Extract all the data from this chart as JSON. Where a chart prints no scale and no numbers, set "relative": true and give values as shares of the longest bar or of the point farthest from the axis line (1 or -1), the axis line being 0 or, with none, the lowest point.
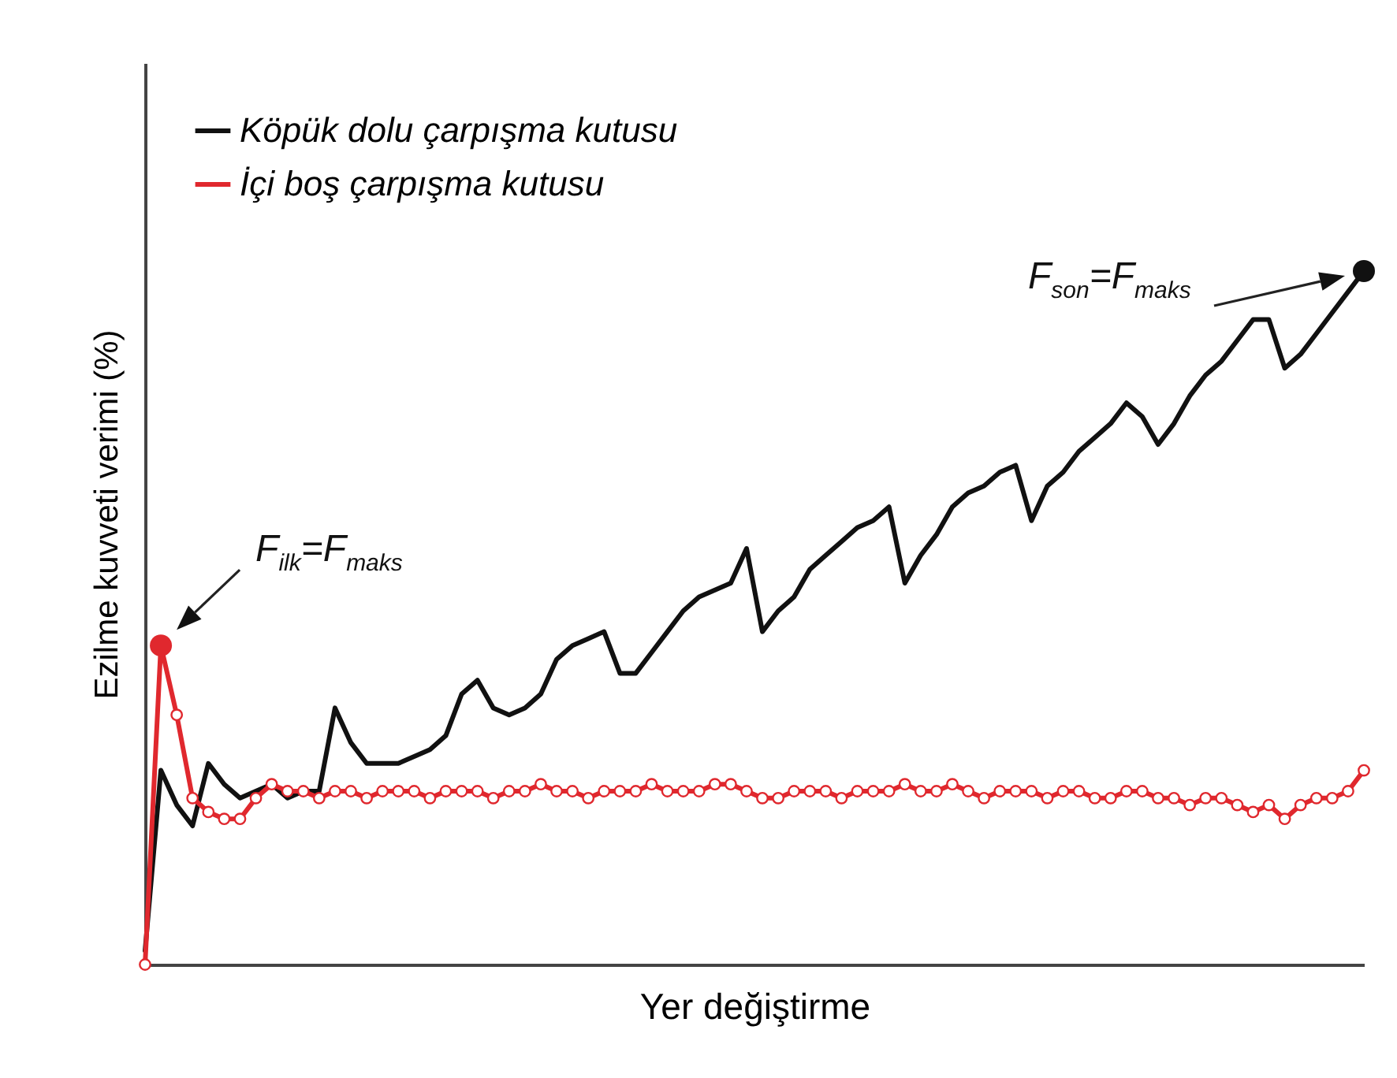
{
  "chart_data": {
    "type": "line",
    "relative": true,
    "xlabel": "Yer değiştirme",
    "ylabel": "Ezilme kuvveti verimi (%)",
    "legend": "top left",
    "categories": [
      null,
      null,
      null,
      null,
      null,
      null,
      null,
      null,
      null,
      null,
      null,
      null,
      null,
      null,
      null,
      null,
      null,
      null,
      null,
      null,
      null,
      null,
      null,
      null,
      null,
      null,
      null,
      null,
      null,
      null,
      null,
      null,
      null,
      null,
      null,
      null,
      null,
      null,
      null,
      null,
      null,
      null,
      null,
      null,
      null,
      null,
      null,
      null,
      null,
      null,
      null,
      null,
      null,
      null,
      null,
      null,
      null,
      null,
      null,
      null,
      null,
      null,
      null,
      null,
      null,
      null,
      null,
      null,
      null,
      null,
      null,
      null,
      null,
      null,
      null,
      null,
      null,
      null
    ],
    "series": [
      {
        "name": "Köpük dolu çarpışma kutusu",
        "color": "#111111",
        "values": [
          0.02,
          0.28,
          0.23,
          0.2,
          0.29,
          0.26,
          0.24,
          0.25,
          0.26,
          0.24,
          0.25,
          0.25,
          0.37,
          0.32,
          0.29,
          0.29,
          0.29,
          0.3,
          0.31,
          0.33,
          0.39,
          0.41,
          0.37,
          0.36,
          0.37,
          0.39,
          0.44,
          0.46,
          0.47,
          0.48,
          0.42,
          0.42,
          0.45,
          0.48,
          0.51,
          0.53,
          0.54,
          0.55,
          0.6,
          0.48,
          0.51,
          0.53,
          0.57,
          0.59,
          0.61,
          0.63,
          0.64,
          0.66,
          0.55,
          0.59,
          0.62,
          0.66,
          0.68,
          0.69,
          0.71,
          0.72,
          0.64,
          0.69,
          0.71,
          0.74,
          0.76,
          0.78,
          0.81,
          0.79,
          0.75,
          0.78,
          0.82,
          0.85,
          0.87,
          0.9,
          0.93,
          0.93,
          0.86,
          0.88,
          0.91,
          0.94,
          0.97,
          1
        ]
      },
      {
        "name": "İçi boş çarpışma kutusu",
        "color": "#e0282e",
        "marker": "circle",
        "values": [
          0,
          0.46,
          0.36,
          0.24,
          0.22,
          0.21,
          0.21,
          0.24,
          0.26,
          0.25,
          0.25,
          0.24,
          0.25,
          0.25,
          0.24,
          0.25,
          0.25,
          0.25,
          0.24,
          0.25,
          0.25,
          0.25,
          0.24,
          0.25,
          0.25,
          0.26,
          0.25,
          0.25,
          0.24,
          0.25,
          0.25,
          0.25,
          0.26,
          0.25,
          0.25,
          0.25,
          0.26,
          0.26,
          0.25,
          0.24,
          0.24,
          0.25,
          0.25,
          0.25,
          0.24,
          0.25,
          0.25,
          0.25,
          0.26,
          0.25,
          0.25,
          0.26,
          0.25,
          0.24,
          0.25,
          0.25,
          0.25,
          0.24,
          0.25,
          0.25,
          0.24,
          0.24,
          0.25,
          0.25,
          0.24,
          0.24,
          0.23,
          0.24,
          0.24,
          0.23,
          0.22,
          0.23,
          0.21,
          0.23,
          0.24,
          0.24,
          0.25,
          0.28
        ]
      }
    ],
    "annotations": [
      "F$_{ilk}$=F$_{maks}$",
      "F$_{son}$=F$_{maks}$"
    ]
  }
}
